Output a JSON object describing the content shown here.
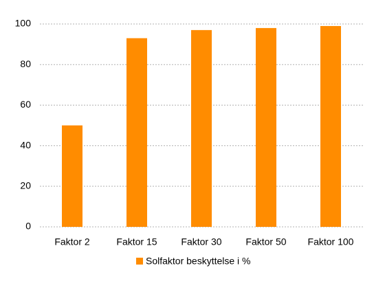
{
  "chart_data": {
    "type": "bar",
    "categories": [
      "Faktor 2",
      "Faktor 15",
      "Faktor 30",
      "Faktor 50",
      "Faktor 100"
    ],
    "series": [
      {
        "name": "Solfaktor beskyttelse i %",
        "color": "#ff8c00",
        "values": [
          50,
          93,
          97,
          98,
          99
        ]
      }
    ],
    "ylim": [
      0,
      100
    ],
    "yticks": [
      0,
      20,
      40,
      60,
      80,
      100
    ],
    "grid": true,
    "legend": "bottom"
  }
}
